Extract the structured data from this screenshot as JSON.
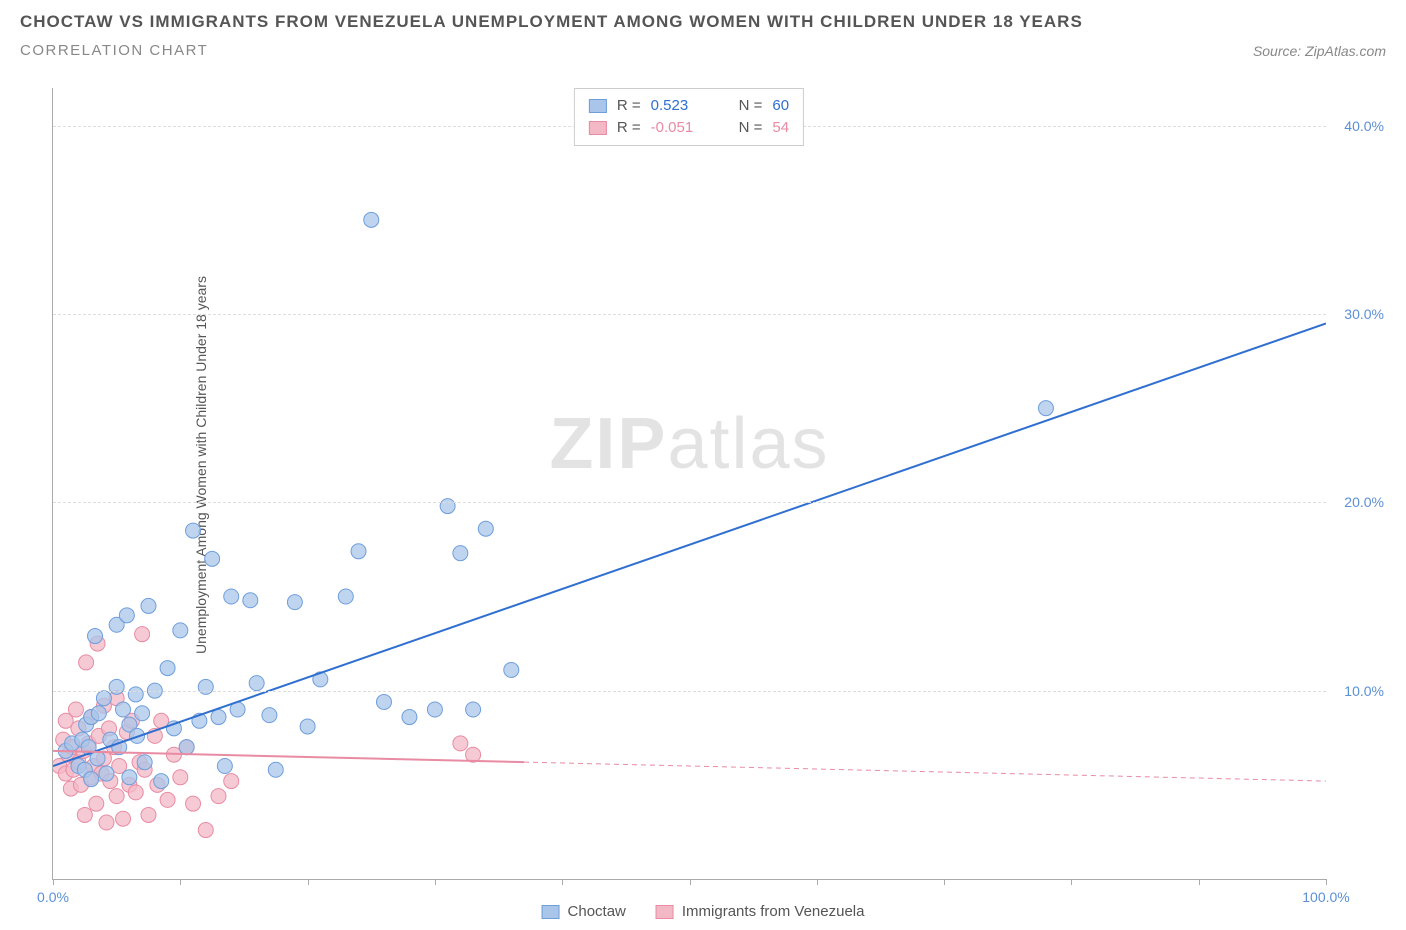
{
  "header": {
    "title": "CHOCTAW VS IMMIGRANTS FROM VENEZUELA UNEMPLOYMENT AMONG WOMEN WITH CHILDREN UNDER 18 YEARS",
    "subtitle": "CORRELATION CHART",
    "source": "Source: ZipAtlas.com"
  },
  "watermark": {
    "bold": "ZIP",
    "rest": "atlas"
  },
  "chart": {
    "type": "scatter",
    "xlim": [
      0,
      100
    ],
    "ylim": [
      0,
      42
    ],
    "x_axis_color": "#5b8fd6",
    "y_axis_color": "#5b8fd6",
    "y_label": "Unemployment Among Women with Children Under 18 years",
    "y_label_color": "#555555",
    "x_ticks": [
      0,
      10,
      20,
      30,
      40,
      50,
      60,
      70,
      80,
      90,
      100
    ],
    "x_tick_labels": {
      "0": "0.0%",
      "100": "100.0%"
    },
    "y_ticks": [
      10,
      20,
      30,
      40
    ],
    "y_tick_labels": [
      "10.0%",
      "20.0%",
      "30.0%",
      "40.0%"
    ],
    "grid_color": "#dddddd",
    "background_color": "#ffffff",
    "marker_radius": 7.5,
    "marker_stroke_width": 1,
    "series": [
      {
        "name": "Choctaw",
        "color_fill": "#a9c5ea",
        "color_stroke": "#6f9edb",
        "r_value": "0.523",
        "n_value": "60",
        "trend": {
          "x1": 0,
          "y1": 6.0,
          "x2": 100,
          "y2": 29.5,
          "solid_until_x": 100,
          "color": "#2f6fd0",
          "width": 2
        },
        "points": [
          [
            1,
            6.8
          ],
          [
            1.5,
            7.2
          ],
          [
            2,
            6.0
          ],
          [
            2.3,
            7.4
          ],
          [
            2.5,
            5.8
          ],
          [
            2.6,
            8.2
          ],
          [
            2.8,
            7.0
          ],
          [
            3,
            5.3
          ],
          [
            3,
            8.6
          ],
          [
            3.3,
            12.9
          ],
          [
            3.5,
            6.4
          ],
          [
            3.6,
            8.8
          ],
          [
            4,
            9.6
          ],
          [
            4.2,
            5.6
          ],
          [
            4.5,
            7.4
          ],
          [
            5,
            10.2
          ],
          [
            5,
            13.5
          ],
          [
            5.2,
            7.0
          ],
          [
            5.5,
            9.0
          ],
          [
            5.8,
            14.0
          ],
          [
            6,
            8.2
          ],
          [
            6,
            5.4
          ],
          [
            6.5,
            9.8
          ],
          [
            6.6,
            7.6
          ],
          [
            7,
            8.8
          ],
          [
            7.2,
            6.2
          ],
          [
            7.5,
            14.5
          ],
          [
            8,
            10.0
          ],
          [
            8.5,
            5.2
          ],
          [
            9,
            11.2
          ],
          [
            9.5,
            8.0
          ],
          [
            10,
            13.2
          ],
          [
            10.5,
            7.0
          ],
          [
            11,
            18.5
          ],
          [
            11.5,
            8.4
          ],
          [
            12,
            10.2
          ],
          [
            12.5,
            17.0
          ],
          [
            13,
            8.6
          ],
          [
            13.5,
            6.0
          ],
          [
            14,
            15.0
          ],
          [
            14.5,
            9.0
          ],
          [
            15.5,
            14.8
          ],
          [
            16,
            10.4
          ],
          [
            17,
            8.7
          ],
          [
            17.5,
            5.8
          ],
          [
            19,
            14.7
          ],
          [
            20,
            8.1
          ],
          [
            21,
            10.6
          ],
          [
            23,
            15.0
          ],
          [
            24,
            17.4
          ],
          [
            25,
            35.0
          ],
          [
            26,
            9.4
          ],
          [
            28,
            8.6
          ],
          [
            30,
            9.0
          ],
          [
            31,
            19.8
          ],
          [
            32,
            17.3
          ],
          [
            33,
            9.0
          ],
          [
            34,
            18.6
          ],
          [
            36,
            11.1
          ],
          [
            78,
            25.0
          ]
        ]
      },
      {
        "name": "Immigrants from Venezuela",
        "color_fill": "#f3b8c5",
        "color_stroke": "#e88ba3",
        "r_value": "-0.051",
        "n_value": "54",
        "trend": {
          "x1": 0,
          "y1": 6.8,
          "x2": 100,
          "y2": 5.2,
          "solid_until_x": 37,
          "color": "#e88ba3",
          "width": 2
        },
        "points": [
          [
            0.5,
            6.0
          ],
          [
            0.8,
            7.4
          ],
          [
            1,
            5.6
          ],
          [
            1,
            8.4
          ],
          [
            1.2,
            6.6
          ],
          [
            1.4,
            4.8
          ],
          [
            1.5,
            7.0
          ],
          [
            1.6,
            5.8
          ],
          [
            1.8,
            9.0
          ],
          [
            2,
            6.2
          ],
          [
            2,
            8.0
          ],
          [
            2.2,
            5.0
          ],
          [
            2.4,
            6.8
          ],
          [
            2.5,
            3.4
          ],
          [
            2.6,
            11.5
          ],
          [
            2.8,
            7.2
          ],
          [
            3,
            5.4
          ],
          [
            3,
            8.6
          ],
          [
            3.2,
            6.0
          ],
          [
            3.4,
            4.0
          ],
          [
            3.5,
            12.5
          ],
          [
            3.6,
            7.6
          ],
          [
            3.8,
            5.6
          ],
          [
            4,
            9.2
          ],
          [
            4,
            6.4
          ],
          [
            4.2,
            3.0
          ],
          [
            4.4,
            8.0
          ],
          [
            4.5,
            5.2
          ],
          [
            4.8,
            7.0
          ],
          [
            5,
            4.4
          ],
          [
            5,
            9.6
          ],
          [
            5.2,
            6.0
          ],
          [
            5.5,
            3.2
          ],
          [
            5.8,
            7.8
          ],
          [
            6,
            5.0
          ],
          [
            6.2,
            8.4
          ],
          [
            6.5,
            4.6
          ],
          [
            6.8,
            6.2
          ],
          [
            7,
            13.0
          ],
          [
            7.2,
            5.8
          ],
          [
            7.5,
            3.4
          ],
          [
            8,
            7.6
          ],
          [
            8.2,
            5.0
          ],
          [
            8.5,
            8.4
          ],
          [
            9,
            4.2
          ],
          [
            9.5,
            6.6
          ],
          [
            10,
            5.4
          ],
          [
            10.5,
            7.0
          ],
          [
            11,
            4.0
          ],
          [
            12,
            2.6
          ],
          [
            13,
            4.4
          ],
          [
            14,
            5.2
          ],
          [
            32,
            7.2
          ],
          [
            33,
            6.6
          ]
        ]
      }
    ]
  },
  "legend_top": {
    "r_label": "R =",
    "n_label": "N ="
  },
  "legend_bottom": {
    "items": [
      "Choctaw",
      "Immigrants from Venezuela"
    ]
  }
}
